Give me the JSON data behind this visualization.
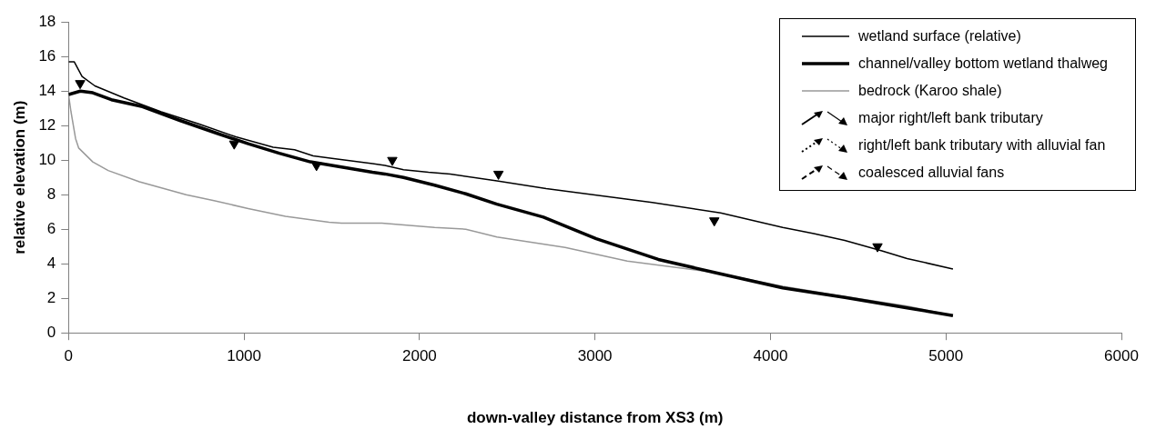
{
  "chart_data": {
    "type": "line",
    "xlabel": "down-valley distance from XS3 (m)",
    "ylabel": "relative elevation (m)",
    "xlim": [
      0,
      6000
    ],
    "xticks": [
      0,
      1000,
      2000,
      3000,
      4000,
      5000,
      6000
    ],
    "ylim": [
      0,
      18
    ],
    "yticks": [
      0,
      2,
      4,
      6,
      8,
      10,
      12,
      14,
      16,
      18
    ],
    "grid": false,
    "legend": "top right",
    "marker": "none",
    "line_style": "solid",
    "series": [
      {
        "name": "wetland surface (relative)",
        "color": "#000000",
        "x": [
          0,
          32,
          77,
          150,
          316,
          528,
          741,
          953,
          1166,
          1288,
          1394,
          1501,
          1732,
          1803,
          1909,
          2051,
          2175,
          2441,
          2722,
          3326,
          3716,
          4070,
          4247,
          4423,
          4635,
          4779,
          5040
        ],
        "values": [
          15.7,
          15.7,
          14.85,
          14.3,
          13.6,
          12.8,
          12.1,
          11.35,
          10.75,
          10.6,
          10.25,
          10.1,
          9.8,
          9.7,
          9.45,
          9.3,
          9.2,
          8.8,
          8.35,
          7.55,
          6.95,
          6.1,
          5.75,
          5.35,
          4.75,
          4.3,
          3.7
        ]
      },
      {
        "name": "channel/valley bottom wetland thalweg",
        "color": "#000000",
        "x": [
          0,
          67,
          138,
          244,
          421,
          634,
          847,
          1024,
          1201,
          1378,
          1555,
          1732,
          1803,
          1909,
          2086,
          2264,
          2441,
          2706,
          3007,
          3361,
          3680,
          4070,
          4424,
          4779,
          5040
        ],
        "values": [
          13.8,
          14,
          13.9,
          13.5,
          13.1,
          12.3,
          11.55,
          10.95,
          10.4,
          9.9,
          9.6,
          9.3,
          9.2,
          9,
          8.55,
          8.05,
          7.45,
          6.7,
          5.45,
          4.25,
          3.5,
          2.6,
          2.05,
          1.45,
          1
        ]
      },
      {
        "name": "bedrock (Karoo shale)",
        "color": "#999999",
        "x": [
          0,
          14,
          40,
          58,
          138,
          226,
          404,
          670,
          829,
          1024,
          1236,
          1484,
          1555,
          1785,
          2086,
          2264,
          2441,
          2830,
          3184,
          3680,
          4070,
          4424,
          4779,
          5040
        ],
        "values": [
          13.8,
          12.8,
          11.25,
          10.7,
          9.9,
          9.4,
          8.75,
          8,
          7.65,
          7.2,
          6.75,
          6.4,
          6.35,
          6.35,
          6.1,
          6,
          5.55,
          4.95,
          4.15,
          3.5,
          2.7,
          2.1,
          1.55,
          1
        ]
      },
      {
        "name": "major right/left bank tributary",
        "type": "scatter",
        "marker": "triangle",
        "line_style": "solid",
        "color": "#000000",
        "x": [
          4610
        ],
        "values": [
          5
        ]
      },
      {
        "name": "right/left bank tributary with alluvial fan",
        "type": "scatter",
        "marker": "triangle",
        "line_style": "dotted",
        "color": "#000000",
        "x": [
          66,
          3680
        ],
        "values": [
          14.45,
          6.5
        ]
      },
      {
        "name": "coalesced alluvial fans",
        "type": "scatter",
        "marker": "triangle",
        "line_style": "dashed",
        "color": "#000000",
        "x": [
          944,
          1413,
          1845,
          2450
        ],
        "values": [
          10.95,
          9.7,
          10,
          9.2
        ]
      }
    ]
  }
}
